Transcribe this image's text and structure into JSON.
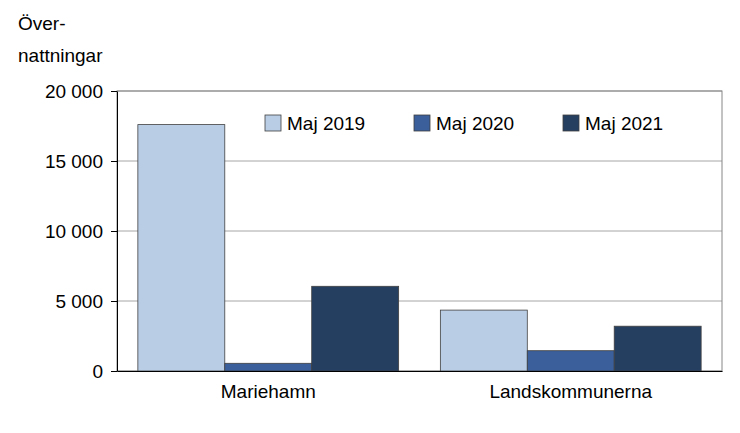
{
  "chart_data": {
    "type": "bar",
    "y_label": "Över-\nnattningar",
    "categories": [
      "Mariehamn",
      "Landskommunerna"
    ],
    "series": [
      {
        "name": "Maj 2019",
        "color": "#b9cde5",
        "values": [
          17600,
          4350
        ]
      },
      {
        "name": "Maj 2020",
        "color": "#3a5f9b",
        "values": [
          550,
          1450
        ]
      },
      {
        "name": "Maj 2021",
        "color": "#253f61",
        "values": [
          6050,
          3200
        ]
      }
    ],
    "ylim": [
      0,
      20000
    ],
    "yticks": [
      0,
      {
        "value": 5000,
        "label": "5 000"
      },
      {
        "value": 10000,
        "label": "10 000"
      },
      {
        "value": 15000,
        "label": "15 000"
      },
      {
        "value": 20000,
        "label": "20 000"
      }
    ],
    "grid": true,
    "legend": "upper right"
  }
}
